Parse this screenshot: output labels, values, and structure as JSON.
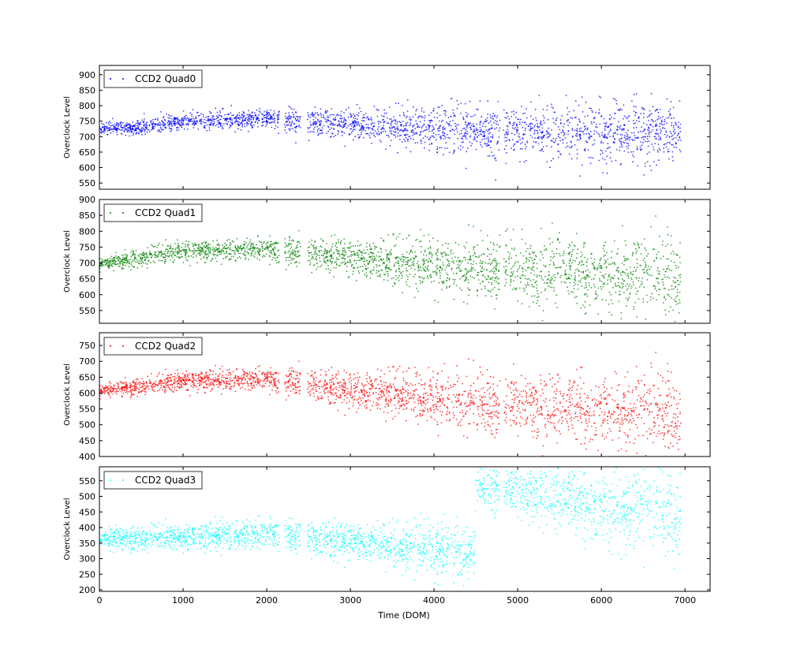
{
  "figure": {
    "xlabel": "Time (DOM)",
    "ylabel": "Overclock Level"
  },
  "chart_data": [
    {
      "type": "scatter",
      "series_name": "CCD2 Quad0",
      "color": "#0000ff",
      "legend_placement": "top-left",
      "xlim": [
        0,
        7300
      ],
      "ylim": [
        530,
        930
      ],
      "xticks": [
        "0",
        "1000",
        "2000",
        "3000",
        "4000",
        "5000",
        "6000",
        "7000"
      ],
      "yticks": [
        "550",
        "600",
        "650",
        "700",
        "750",
        "800",
        "850",
        "900"
      ],
      "show_xtick_labels": false,
      "trend": [
        {
          "x": 0,
          "y": 725,
          "spread": 12
        },
        {
          "x": 500,
          "y": 730,
          "spread": 18
        },
        {
          "x": 1000,
          "y": 750,
          "spread": 20
        },
        {
          "x": 2000,
          "y": 755,
          "spread": 22
        },
        {
          "x": 3000,
          "y": 740,
          "spread": 35
        },
        {
          "x": 4000,
          "y": 725,
          "spread": 50
        },
        {
          "x": 5000,
          "y": 720,
          "spread": 60
        },
        {
          "x": 6000,
          "y": 712,
          "spread": 70
        },
        {
          "x": 6950,
          "y": 710,
          "spread": 75
        }
      ]
    },
    {
      "type": "scatter",
      "series_name": "CCD2 Quad1",
      "color": "#008000",
      "legend_placement": "top-left",
      "xlim": [
        0,
        7300
      ],
      "ylim": [
        510,
        900
      ],
      "xticks": [
        "0",
        "1000",
        "2000",
        "3000",
        "4000",
        "5000",
        "6000",
        "7000"
      ],
      "yticks": [
        "550",
        "600",
        "650",
        "700",
        "750",
        "800",
        "850",
        "900"
      ],
      "show_xtick_labels": false,
      "trend": [
        {
          "x": 0,
          "y": 695,
          "spread": 15
        },
        {
          "x": 500,
          "y": 715,
          "spread": 20
        },
        {
          "x": 1000,
          "y": 740,
          "spread": 22
        },
        {
          "x": 2000,
          "y": 745,
          "spread": 25
        },
        {
          "x": 3000,
          "y": 715,
          "spread": 40
        },
        {
          "x": 4000,
          "y": 690,
          "spread": 60
        },
        {
          "x": 5000,
          "y": 680,
          "spread": 70
        },
        {
          "x": 6000,
          "y": 665,
          "spread": 80
        },
        {
          "x": 6950,
          "y": 650,
          "spread": 85
        }
      ]
    },
    {
      "type": "scatter",
      "series_name": "CCD2 Quad2",
      "color": "#ff0000",
      "legend_placement": "top-left",
      "xlim": [
        0,
        7300
      ],
      "ylim": [
        400,
        790
      ],
      "xticks": [
        "0",
        "1000",
        "2000",
        "3000",
        "4000",
        "5000",
        "6000",
        "7000"
      ],
      "yticks": [
        "400",
        "450",
        "500",
        "550",
        "600",
        "650",
        "700",
        "750"
      ],
      "show_xtick_labels": false,
      "trend": [
        {
          "x": 0,
          "y": 605,
          "spread": 15
        },
        {
          "x": 500,
          "y": 620,
          "spread": 20
        },
        {
          "x": 1000,
          "y": 640,
          "spread": 22
        },
        {
          "x": 2000,
          "y": 645,
          "spread": 25
        },
        {
          "x": 3000,
          "y": 610,
          "spread": 40
        },
        {
          "x": 4000,
          "y": 580,
          "spread": 60
        },
        {
          "x": 5000,
          "y": 565,
          "spread": 70
        },
        {
          "x": 6000,
          "y": 545,
          "spread": 80
        },
        {
          "x": 6950,
          "y": 530,
          "spread": 85
        }
      ]
    },
    {
      "type": "scatter",
      "series_name": "CCD2 Quad3",
      "color": "#00ffff",
      "legend_placement": "top-left",
      "xlim": [
        0,
        7300
      ],
      "ylim": [
        195,
        595
      ],
      "xticks": [
        "0",
        "1000",
        "2000",
        "3000",
        "4000",
        "5000",
        "6000",
        "7000"
      ],
      "yticks": [
        "200",
        "250",
        "300",
        "350",
        "400",
        "450",
        "500",
        "550"
      ],
      "show_xtick_labels": true,
      "trend": [
        {
          "x": 0,
          "y": 360,
          "spread": 25
        },
        {
          "x": 1000,
          "y": 370,
          "spread": 30
        },
        {
          "x": 2000,
          "y": 380,
          "spread": 35
        },
        {
          "x": 3000,
          "y": 355,
          "spread": 40
        },
        {
          "x": 4000,
          "y": 330,
          "spread": 60
        },
        {
          "x": 4490,
          "y": 320,
          "spread": 65
        },
        {
          "x": 4500,
          "y": 530,
          "spread": 40
        },
        {
          "x": 5000,
          "y": 520,
          "spread": 60
        },
        {
          "x": 6000,
          "y": 460,
          "spread": 90
        },
        {
          "x": 6950,
          "y": 440,
          "spread": 100
        }
      ]
    }
  ]
}
